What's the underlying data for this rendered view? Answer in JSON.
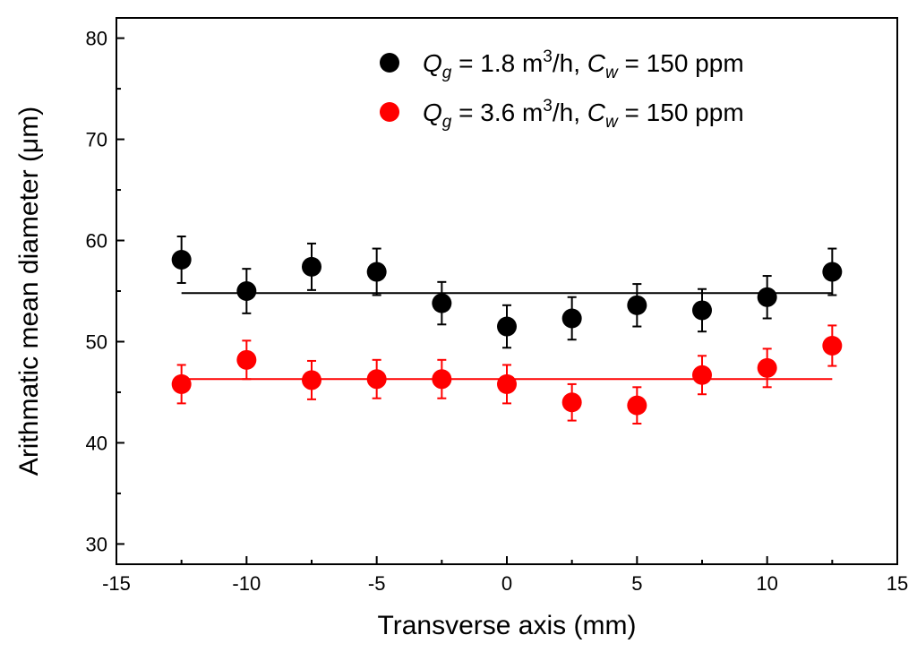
{
  "chart_data": {
    "type": "scatter",
    "title": "",
    "xlabel": "Transverse axis (mm)",
    "ylabel": "Arithmatic mean diameter (μm)",
    "xlim": [
      -15,
      15
    ],
    "ylim": [
      28,
      82
    ],
    "xticks": [
      -15,
      -10,
      -5,
      0,
      5,
      10,
      15
    ],
    "yticks": [
      30,
      40,
      50,
      60,
      70,
      80
    ],
    "xtick_labels": [
      "-15",
      "-10",
      "-5",
      "0",
      "5",
      "10",
      "15"
    ],
    "ytick_labels": [
      "30",
      "40",
      "50",
      "60",
      "70",
      "80"
    ],
    "grid": false,
    "legend_position": "top-right",
    "x": [
      -12.5,
      -10,
      -7.5,
      -5,
      -2.5,
      0,
      2.5,
      5,
      7.5,
      10,
      12.5
    ],
    "series": [
      {
        "name": "Qg = 1.8 m3/h, Cw = 150 ppm",
        "legend": {
          "q_sym": "Q",
          "q_sub": "g",
          "q_value": " = 1.8 m",
          "q_sup": "3",
          "q_unit": "/h, ",
          "c_sym": "C",
          "c_sub": "w",
          "c_value": " = 150 ppm"
        },
        "color": "#000000",
        "values": [
          58.1,
          55.0,
          57.4,
          56.9,
          53.8,
          51.5,
          52.3,
          53.6,
          53.1,
          54.4,
          56.9
        ],
        "errors": [
          2.3,
          2.2,
          2.3,
          2.3,
          2.1,
          2.1,
          2.1,
          2.1,
          2.1,
          2.1,
          2.3
        ],
        "fit_value": 54.8
      },
      {
        "name": "Qg = 3.6 m3/h, Cw = 150 ppm",
        "legend": {
          "q_sym": "Q",
          "q_sub": "g",
          "q_value": " = 3.6 m",
          "q_sup": "3",
          "q_unit": "/h, ",
          "c_sym": "C",
          "c_sub": "w",
          "c_value": " = 150 ppm"
        },
        "color": "#ff0000",
        "values": [
          45.8,
          48.2,
          46.2,
          46.3,
          46.3,
          45.8,
          44.0,
          43.7,
          46.7,
          47.4,
          49.6
        ],
        "errors": [
          1.9,
          1.9,
          1.9,
          1.9,
          1.9,
          1.9,
          1.8,
          1.8,
          1.9,
          1.9,
          2.0
        ],
        "fit_value": 46.3
      }
    ]
  }
}
